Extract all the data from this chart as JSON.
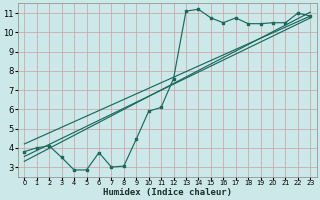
{
  "bg_color": "#cce8e8",
  "grid_color": "#c8a0a0",
  "line_color": "#1a6a60",
  "xlabel": "Humidex (Indice chaleur)",
  "xlim": [
    -0.5,
    23.5
  ],
  "ylim": [
    2.5,
    11.5
  ],
  "yticks": [
    3,
    4,
    5,
    6,
    7,
    8,
    9,
    10,
    11
  ],
  "xticks": [
    0,
    1,
    2,
    3,
    4,
    5,
    6,
    7,
    8,
    9,
    10,
    11,
    12,
    13,
    14,
    15,
    16,
    17,
    18,
    19,
    20,
    21,
    22,
    23
  ],
  "scatter_x": [
    0,
    1,
    2,
    3,
    4,
    5,
    6,
    7,
    8,
    9,
    10,
    11,
    12,
    13,
    14,
    15,
    16,
    17,
    18,
    19,
    20,
    21,
    22,
    23
  ],
  "scatter_y": [
    3.8,
    4.0,
    4.1,
    3.5,
    2.85,
    2.85,
    3.75,
    3.0,
    3.05,
    4.45,
    5.9,
    6.1,
    7.6,
    11.1,
    11.2,
    10.75,
    10.5,
    10.75,
    10.45,
    10.45,
    10.5,
    10.5,
    11.0,
    10.85
  ],
  "line1_x": [
    0,
    23
  ],
  "line1_y": [
    3.3,
    11.05
  ],
  "line2_x": [
    0,
    23
  ],
  "line2_y": [
    3.55,
    10.75
  ],
  "line3_x": [
    0,
    23
  ],
  "line3_y": [
    4.2,
    10.85
  ]
}
